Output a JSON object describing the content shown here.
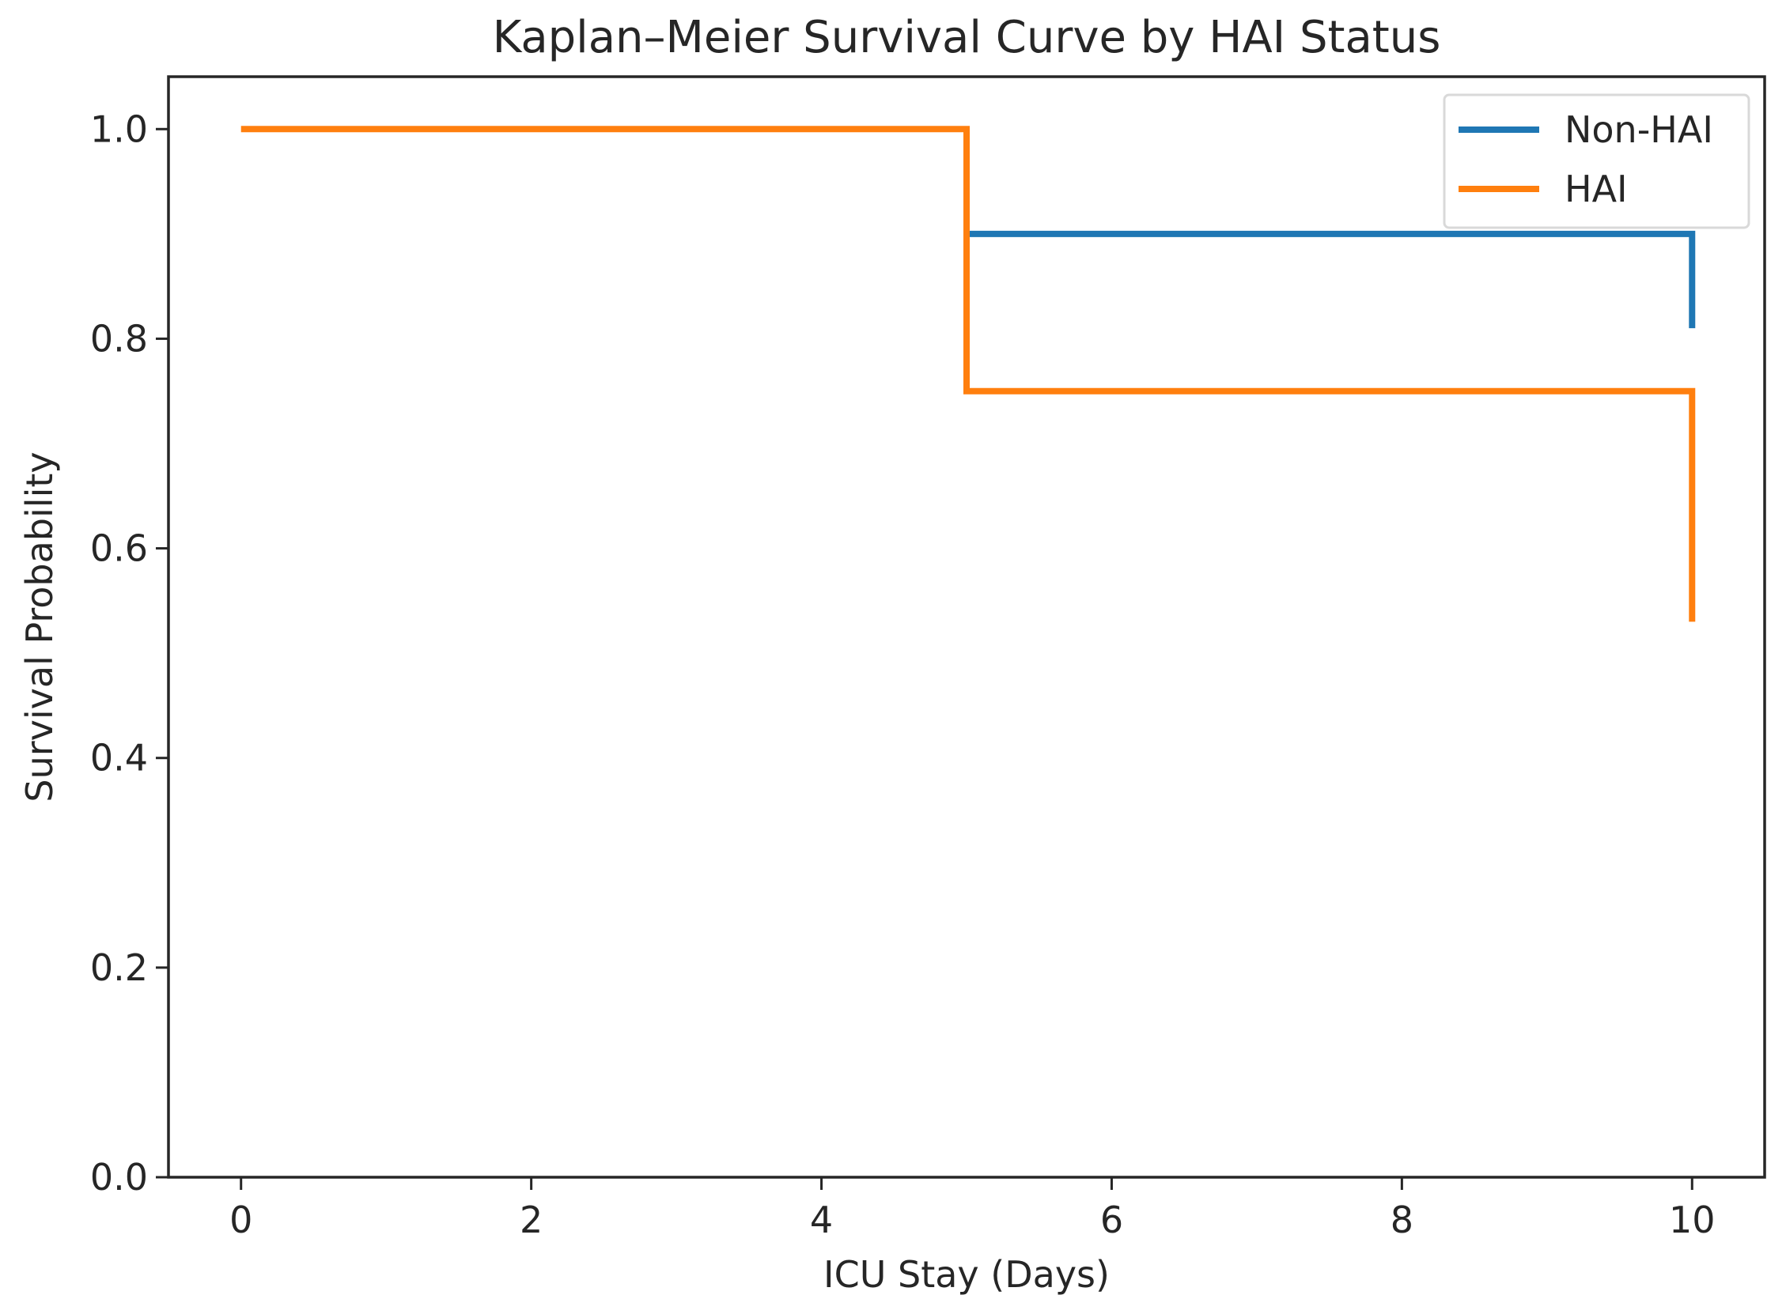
{
  "chart_data": {
    "type": "line",
    "step": "post",
    "title": "Kaplan–Meier Survival Curve by HAI Status",
    "xlabel": "ICU Stay (Days)",
    "ylabel": "Survival Probability",
    "xlim": [
      -0.5,
      10.5
    ],
    "ylim": [
      0.0,
      1.05
    ],
    "xticks": [
      0,
      2,
      4,
      6,
      8,
      10
    ],
    "xtick_labels": [
      "0",
      "2",
      "4",
      "6",
      "8",
      "10"
    ],
    "yticks": [
      0.0,
      0.2,
      0.4,
      0.6,
      0.8,
      1.0
    ],
    "ytick_labels": [
      "0.0",
      "0.2",
      "0.4",
      "0.6",
      "0.8",
      "1.0"
    ],
    "grid": false,
    "legend_position": "top-right",
    "series": [
      {
        "name": "Non-HAI",
        "color": "#1f77b4",
        "x": [
          5,
          10,
          10
        ],
        "y": [
          0.9,
          0.9,
          0.81
        ]
      },
      {
        "name": "HAI",
        "color": "#ff7f0e",
        "x": [
          0,
          5,
          10,
          10
        ],
        "y": [
          1.0,
          0.75,
          0.75,
          0.53
        ]
      }
    ]
  }
}
